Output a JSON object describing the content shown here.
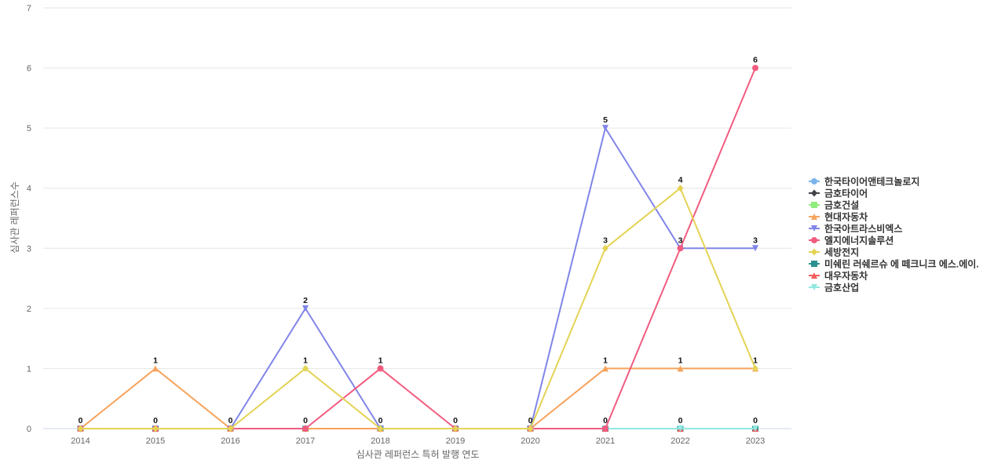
{
  "chart_data": {
    "type": "line",
    "title": "",
    "xlabel": "심사관 레퍼런스 특허 발행 연도",
    "ylabel": "심사관 레퍼런스수",
    "ylim": [
      0,
      7
    ],
    "yticks": [
      0,
      1,
      2,
      3,
      4,
      5,
      6,
      7
    ],
    "categories": [
      "2014",
      "2015",
      "2016",
      "2017",
      "2018",
      "2019",
      "2020",
      "2021",
      "2022",
      "2023"
    ],
    "grid": true,
    "legend_position": "right",
    "series": [
      {
        "name": "한국타이어앤테크놀로지",
        "color": "#7cb5ec",
        "marker": "circle",
        "values": [
          0,
          0,
          0,
          0,
          0,
          0,
          0,
          0,
          0,
          0
        ],
        "show_labels": false
      },
      {
        "name": "금호타이어",
        "color": "#434348",
        "marker": "diamond",
        "values": [
          0,
          0,
          0,
          0,
          0,
          0,
          0,
          0,
          0,
          0
        ],
        "show_labels": false
      },
      {
        "name": "금호건설",
        "color": "#90ed7d",
        "marker": "square",
        "values": [
          0,
          0,
          0,
          0,
          0,
          0,
          0,
          0,
          0,
          0
        ],
        "show_labels": false
      },
      {
        "name": "현대자동차",
        "color": "#f7a35c",
        "marker": "triangle",
        "values": [
          0,
          1,
          0,
          0,
          0,
          0,
          0,
          1,
          1,
          1
        ],
        "show_labels": true
      },
      {
        "name": "한국아트라스비엑스",
        "color": "#8085e9",
        "marker": "triangle-down",
        "values": [
          0,
          0,
          0,
          2,
          0,
          0,
          0,
          5,
          3,
          3
        ],
        "show_labels": true
      },
      {
        "name": "엘지에너지솔루션",
        "color": "#f15c80",
        "marker": "circle",
        "values": [
          0,
          0,
          0,
          0,
          1,
          0,
          0,
          0,
          3,
          6
        ],
        "show_labels": true
      },
      {
        "name": "세방전지",
        "color": "#e4d354",
        "marker": "diamond",
        "values": [
          0,
          0,
          0,
          1,
          0,
          0,
          0,
          3,
          4,
          1
        ],
        "show_labels": true
      },
      {
        "name": "미쉐린 러쉐르슈 에 떼크니크 에스.에이.",
        "color": "#2b908f",
        "marker": "square",
        "values": [
          0,
          0,
          0,
          0,
          0,
          0,
          0,
          0,
          0,
          0
        ],
        "show_labels": false
      },
      {
        "name": "대우자동차",
        "color": "#f45b5b",
        "marker": "triangle",
        "values": [
          0,
          0,
          0,
          0,
          0,
          0,
          0,
          0,
          0,
          0
        ],
        "show_labels": false
      },
      {
        "name": "금호산업",
        "color": "#91e8e1",
        "marker": "triangle-down",
        "values": [
          0,
          0,
          0,
          0,
          0,
          0,
          0,
          0,
          0,
          0
        ],
        "show_labels": false
      }
    ],
    "data_labels": [
      {
        "x": "2014",
        "y": 0,
        "text": "0"
      },
      {
        "x": "2015",
        "y": 1,
        "text": "1"
      },
      {
        "x": "2015",
        "y": 0,
        "text": "0"
      },
      {
        "x": "2016",
        "y": 0,
        "text": "0"
      },
      {
        "x": "2017",
        "y": 2,
        "text": "2"
      },
      {
        "x": "2017",
        "y": 1,
        "text": "1"
      },
      {
        "x": "2017",
        "y": 0,
        "text": "0"
      },
      {
        "x": "2018",
        "y": 1,
        "text": "1"
      },
      {
        "x": "2018",
        "y": 0,
        "text": "0"
      },
      {
        "x": "2019",
        "y": 0,
        "text": "0"
      },
      {
        "x": "2020",
        "y": 0,
        "text": "0"
      },
      {
        "x": "2021",
        "y": 5,
        "text": "5"
      },
      {
        "x": "2021",
        "y": 3,
        "text": "3"
      },
      {
        "x": "2021",
        "y": 1,
        "text": "1"
      },
      {
        "x": "2021",
        "y": 0,
        "text": "0"
      },
      {
        "x": "2022",
        "y": 4,
        "text": "4"
      },
      {
        "x": "2022",
        "y": 3,
        "text": "3"
      },
      {
        "x": "2022",
        "y": 1,
        "text": "1"
      },
      {
        "x": "2022",
        "y": 0,
        "text": "0"
      },
      {
        "x": "2023",
        "y": 6,
        "text": "6"
      },
      {
        "x": "2023",
        "y": 3,
        "text": "3"
      },
      {
        "x": "2023",
        "y": 1,
        "text": "1"
      },
      {
        "x": "2023",
        "y": 0,
        "text": "0"
      }
    ]
  }
}
